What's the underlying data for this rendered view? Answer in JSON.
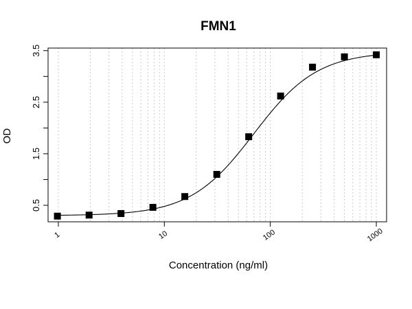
{
  "chart_data": {
    "type": "scatter",
    "title": "FMN1",
    "xlabel": "Concentration (ng/ml)",
    "ylabel": "OD",
    "x_scale": "log",
    "xlim": [
      0.8,
      1250
    ],
    "ylim": [
      0.18,
      3.55
    ],
    "x_ticks": [
      1,
      10,
      100,
      1000
    ],
    "x_tick_labels": [
      "1",
      "10",
      "100",
      "1000"
    ],
    "y_ticks": [
      0.5,
      1.5,
      2.5,
      3.5
    ],
    "y_tick_labels": [
      "0.5",
      "1.5",
      "2.5",
      "3.5"
    ],
    "grid": "vertical dotted at log minor ticks",
    "series": [
      {
        "marker": "square",
        "color": "#000000",
        "x": [
          0.98,
          1.95,
          3.9,
          7.8,
          15.6,
          31.25,
          62.5,
          125,
          250,
          500,
          1000
        ],
        "y": [
          0.29,
          0.31,
          0.34,
          0.46,
          0.67,
          1.1,
          1.83,
          2.62,
          3.18,
          3.38,
          3.42
        ]
      }
    ],
    "fit_curve": {
      "model": "4PL",
      "bottom": 0.3,
      "top": 3.48,
      "ec50": 70,
      "hill": 1.45
    }
  }
}
